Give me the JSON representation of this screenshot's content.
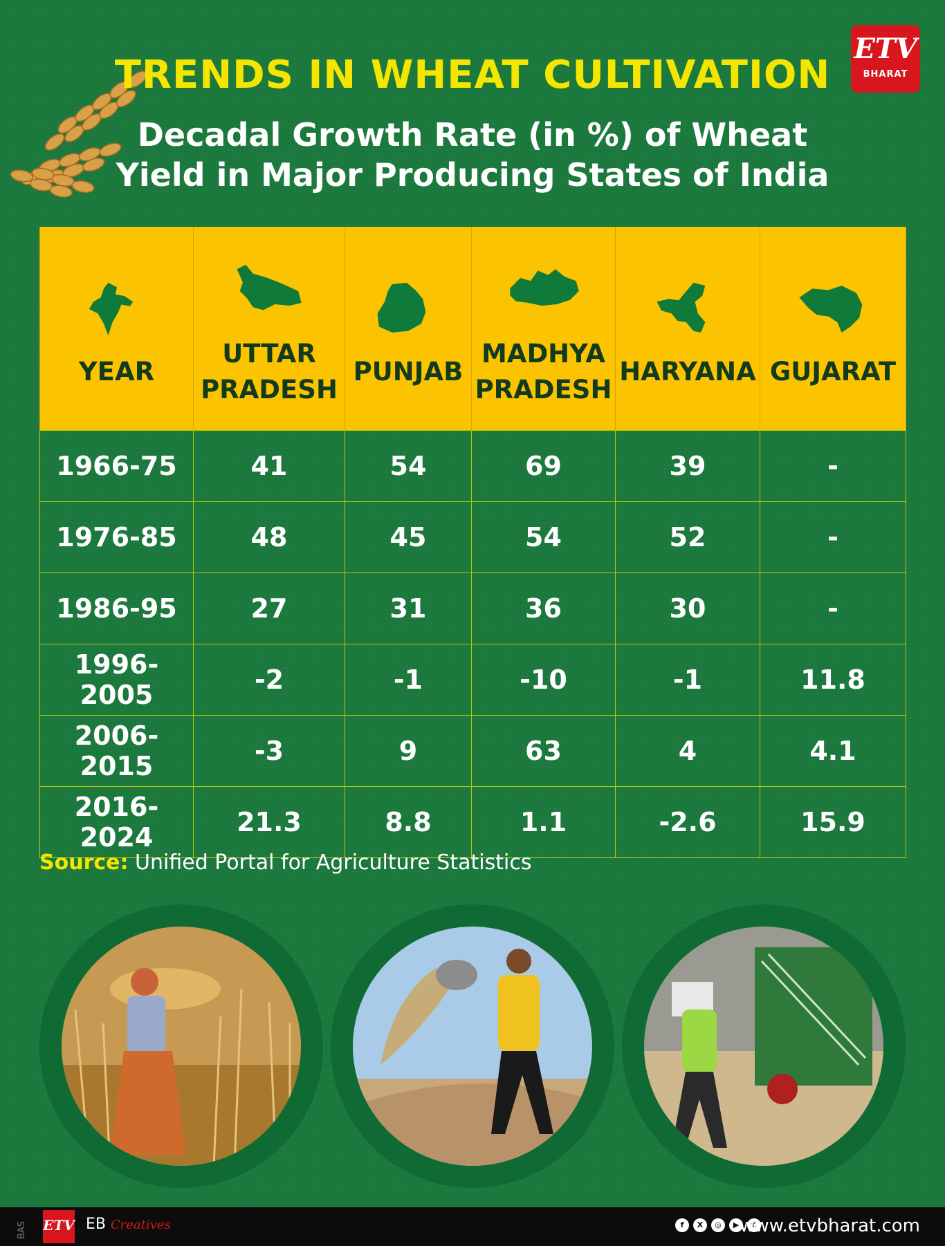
{
  "header": {
    "title": "TRENDS IN WHEAT CULTIVATION",
    "subtitle_line1": "Decadal Growth Rate (in %) of Wheat",
    "subtitle_line2": "Yield in Major Producing States of India",
    "logo_text": "ETV",
    "logo_sub": "BHARAT"
  },
  "table": {
    "columns": [
      {
        "line1": "",
        "line2": "YEAR",
        "map": "india-map-icon"
      },
      {
        "line1": "UTTAR",
        "line2": "PRADESH",
        "map": "uttar-pradesh-map-icon"
      },
      {
        "line1": "",
        "line2": "PUNJAB",
        "map": "punjab-map-icon"
      },
      {
        "line1": "MADHYA",
        "line2": "PRADESH",
        "map": "madhya-pradesh-map-icon"
      },
      {
        "line1": "",
        "line2": "HARYANA",
        "map": "haryana-map-icon"
      },
      {
        "line1": "",
        "line2": "GUJARAT",
        "map": "gujarat-map-icon"
      }
    ],
    "rows": [
      [
        "1966-75",
        "41",
        "54",
        "69",
        "39",
        "-"
      ],
      [
        "1976-85",
        "48",
        "45",
        "54",
        "52",
        "-"
      ],
      [
        "1986-95",
        "27",
        "31",
        "36",
        "30",
        "-"
      ],
      [
        "1996-2005",
        "-2",
        "-1",
        "-10",
        "-1",
        "11.8"
      ],
      [
        "2006-2015",
        "-3",
        "9",
        "63",
        "4",
        "4.1"
      ],
      [
        "2016-2024",
        "21.3",
        "8.8",
        "1.1",
        "-2.6",
        "15.9"
      ]
    ]
  },
  "source": {
    "label": "Source:",
    "text": " Unified Portal for Agriculture Statistics"
  },
  "footer": {
    "bas": "BAS",
    "logo_text": "ETV",
    "eb": "EB",
    "creatives": "Creatives",
    "social": [
      "f",
      "X",
      "◎",
      "▶",
      "✆"
    ],
    "url": "www.etvbharat.com"
  },
  "colors": {
    "background": "#1d7a3e",
    "header_row": "#fcc400",
    "title": "#f4e600",
    "brand_red": "#d8161d"
  }
}
